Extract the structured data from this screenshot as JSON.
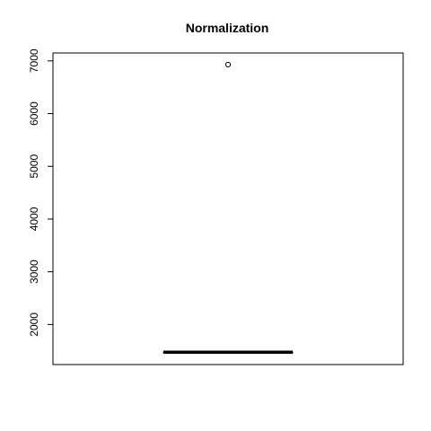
{
  "chart_data": {
    "type": "boxplot",
    "title": "Normalization",
    "xlabel": "",
    "ylabel": "",
    "ylim": [
      1240,
      7150
    ],
    "yticks": [
      2000,
      3000,
      4000,
      5000,
      6000,
      7000
    ],
    "ytick_labels": [
      "2000",
      "3000",
      "4000",
      "5000",
      "6000",
      "7000"
    ],
    "grid": false,
    "box": {
      "min": 1475,
      "q1": 1475,
      "median": 1475,
      "q3": 1475,
      "max": 1475,
      "outliers": [
        6930
      ]
    },
    "colors": {
      "line": "#000000",
      "background": "#ffffff"
    }
  }
}
